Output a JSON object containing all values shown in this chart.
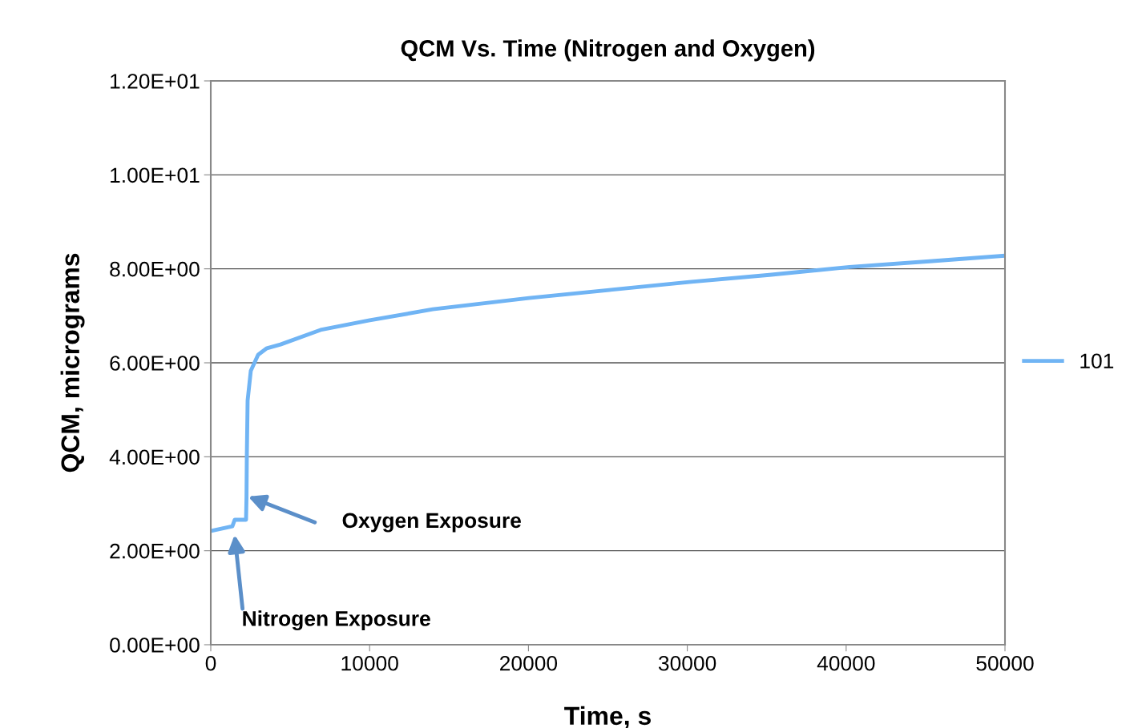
{
  "chart_data": {
    "type": "line",
    "title": "QCM Vs. Time (Nitrogen and Oxygen)",
    "xlabel": "Time, s",
    "ylabel": "QCM, micrograms",
    "x": [
      0,
      1360,
      1510,
      2220,
      2250,
      2270,
      2320,
      2520,
      2980,
      3530,
      4390,
      6910,
      9940,
      13980,
      20030,
      25080,
      30120,
      35170,
      40210,
      45260,
      50000
    ],
    "series": [
      {
        "name": "101",
        "color": "#70b4f4",
        "values": [
          2.42,
          2.52,
          2.66,
          2.66,
          3.15,
          4.0,
          5.2,
          5.83,
          6.17,
          6.31,
          6.39,
          6.7,
          6.9,
          7.14,
          7.38,
          7.55,
          7.72,
          7.87,
          8.04,
          8.16,
          8.28
        ]
      }
    ],
    "xlim": [
      0,
      50000
    ],
    "xticks": [
      0,
      10000,
      20000,
      30000,
      40000,
      50000
    ],
    "ylim": [
      0,
      12
    ],
    "yticks": [
      {
        "value": 0,
        "label": "0.00E+00"
      },
      {
        "value": 2,
        "label": "2.00E+00"
      },
      {
        "value": 4,
        "label": "4.00E+00"
      },
      {
        "value": 6,
        "label": "6.00E+00"
      },
      {
        "value": 8,
        "label": "8.00E+00"
      },
      {
        "value": 10,
        "label": "1.00E+01"
      },
      {
        "value": 12,
        "label": "1.20E+01"
      }
    ],
    "annotations": [
      "Oxygen Exposure",
      "Nitrogen Exposure"
    ],
    "grid": "y",
    "legend": "right",
    "marker": "none",
    "line_style": "solid"
  }
}
